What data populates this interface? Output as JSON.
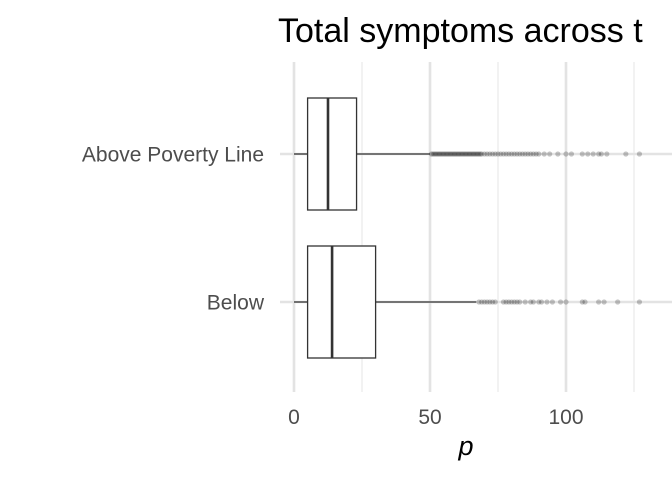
{
  "chart_data": {
    "type": "boxplot",
    "orientation": "horizontal",
    "title": "Total symptoms across t",
    "xlabel": "p",
    "ylabel": "",
    "xlim": [
      -3,
      133
    ],
    "x_ticks": [
      0,
      50,
      100
    ],
    "x_tick_labels": [
      "0",
      "50",
      "100"
    ],
    "grid": true,
    "legend": "none",
    "colors": {
      "box_stroke": "#333333",
      "grid": "#e3e3e3",
      "outlier": "#000000"
    },
    "categories": [
      "Above Poverty Line",
      "Below"
    ],
    "series": [
      {
        "category": "Above Poverty Line",
        "whisker_low": 0,
        "q1": 5,
        "median": 12.5,
        "q3": 23,
        "whisker_high": 50,
        "outliers": [
          50.5,
          51,
          51.5,
          52,
          52.5,
          53,
          53.5,
          54,
          54.5,
          55,
          55.5,
          56,
          56.5,
          57,
          57.5,
          58,
          58.5,
          59,
          59.5,
          60,
          60.5,
          61,
          61.5,
          62,
          62.5,
          63,
          63.5,
          64,
          64.5,
          65,
          65.5,
          66,
          66.5,
          67,
          67.5,
          68,
          68.5,
          69,
          70,
          71,
          72,
          73,
          74,
          75,
          76,
          77,
          78,
          79,
          80,
          81,
          82,
          83,
          84,
          85,
          86,
          87,
          88,
          89,
          90,
          92,
          94,
          97,
          100,
          102,
          106,
          108,
          110,
          112,
          113,
          115,
          122,
          127
        ]
      },
      {
        "category": "Below",
        "whisker_low": 0,
        "q1": 5,
        "median": 14,
        "q3": 30,
        "whisker_high": 67,
        "outliers": [
          68,
          69,
          70,
          71,
          72,
          73,
          74,
          77,
          78,
          79,
          80,
          81,
          82,
          83,
          85,
          87,
          88,
          90,
          91,
          93,
          95,
          98,
          100,
          106,
          107,
          112,
          114,
          119,
          127
        ]
      }
    ]
  }
}
